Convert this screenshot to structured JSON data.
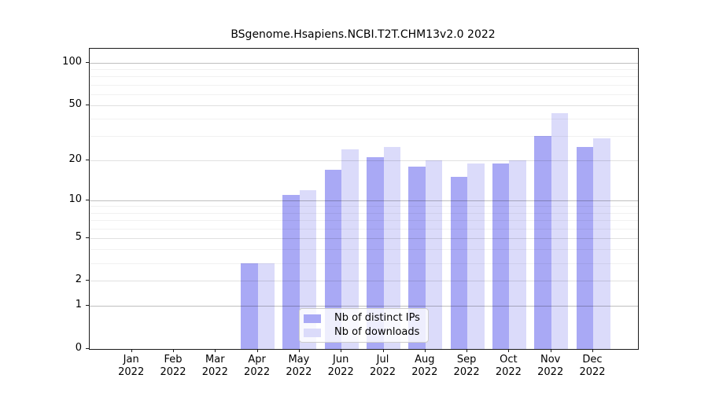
{
  "title": "BSgenome.Hsapiens.NCBI.T2T.CHM13v2.0 2022",
  "chart_data": {
    "type": "bar",
    "scale": "log1p",
    "title": "BSgenome.Hsapiens.NCBI.T2T.CHM13v2.0 2022",
    "categories": [
      "Jan",
      "Feb",
      "Mar",
      "Apr",
      "May",
      "Jun",
      "Jul",
      "Aug",
      "Sep",
      "Oct",
      "Nov",
      "Dec"
    ],
    "year": "2022",
    "series": [
      {
        "name": "Nb of distinct IPs",
        "color": "#a9a9f5",
        "values": [
          0,
          0,
          0,
          3,
          11,
          17,
          21,
          18,
          15,
          19,
          30,
          25
        ]
      },
      {
        "name": "Nb of downloads",
        "color": "#dbdbfa",
        "values": [
          0,
          0,
          0,
          3,
          12,
          24,
          25,
          20,
          19,
          20,
          44,
          29
        ]
      }
    ],
    "yticks": [
      0,
      1,
      2,
      5,
      10,
      20,
      50,
      100
    ],
    "minor_yticks": [
      3,
      4,
      6,
      7,
      8,
      9,
      30,
      40,
      60,
      70,
      80,
      90
    ],
    "pow10_ticks": [
      1,
      10,
      100
    ],
    "ylim": [
      0,
      126
    ],
    "xlabel": "",
    "ylabel": "",
    "grid": true,
    "legend_position": "bottom-center"
  },
  "colors": {
    "distinct_ips": "#a9a9f5",
    "downloads": "#dbdbfa",
    "axis": "#1a1a1a",
    "background": "#ffffff"
  }
}
